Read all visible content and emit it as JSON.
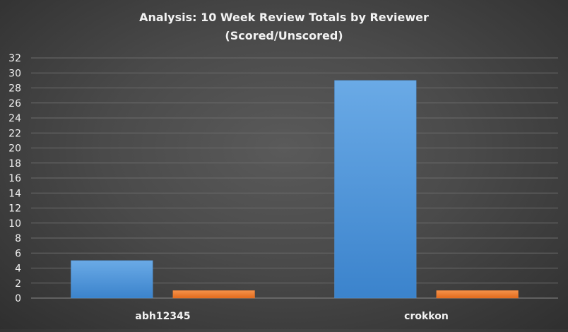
{
  "chart_data": {
    "type": "bar",
    "title_line1": "Analysis:  10 Week Review Totals  by Reviewer",
    "title_line2": "(Scored/Unscored)",
    "categories": [
      "abh12345",
      "crokkon"
    ],
    "series": [
      {
        "values": [
          5,
          29
        ],
        "color": "#4f94d8"
      },
      {
        "values": [
          1,
          1
        ],
        "color": "#ed7d31"
      }
    ],
    "ylim": [
      0,
      32
    ],
    "yticks": [
      0,
      2,
      4,
      6,
      8,
      10,
      12,
      14,
      16,
      18,
      20,
      22,
      24,
      26,
      28,
      30,
      32
    ],
    "xlabel": "",
    "ylabel": "",
    "grid": true,
    "legend": "none"
  }
}
